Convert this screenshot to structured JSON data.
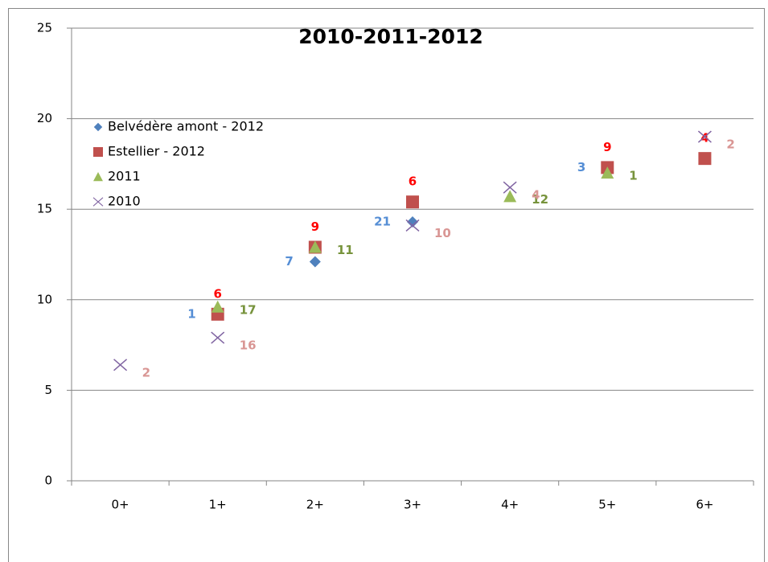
{
  "chart_data": {
    "type": "scatter",
    "title": "2010-2011-2012",
    "categories": [
      "0+",
      "1+",
      "2+",
      "3+",
      "4+",
      "5+",
      "6+"
    ],
    "ylim": [
      0,
      25
    ],
    "yticks": [
      0,
      5,
      10,
      15,
      20,
      25
    ],
    "grid": true,
    "legend": "upper left",
    "series": [
      {
        "name": "Belvédère amont - 2012",
        "color": "#4F81BD",
        "marker": "diamond",
        "label_color": "#558ED5",
        "values": [
          null,
          9.2,
          12.1,
          14.3,
          null,
          17.3,
          null
        ],
        "counts": [
          null,
          1,
          7,
          21,
          null,
          3,
          null
        ]
      },
      {
        "name": "Estellier - 2012",
        "color": "#C0504D",
        "marker": "square",
        "label_color": "#FF0000",
        "values": [
          null,
          9.2,
          12.9,
          15.4,
          null,
          17.3,
          17.8
        ],
        "counts": [
          null,
          6,
          9,
          6,
          null,
          9,
          4
        ]
      },
      {
        "name": "2011",
        "color": "#9BBB59",
        "marker": "triangle",
        "label_color": "#77933C",
        "values": [
          null,
          9.6,
          12.9,
          null,
          15.7,
          17.0,
          null
        ],
        "counts": [
          null,
          17,
          11,
          null,
          12,
          1,
          null
        ]
      },
      {
        "name": "2010",
        "color": "#8064A2",
        "marker": "x",
        "label_color": "#D99694",
        "values": [
          6.4,
          7.9,
          null,
          14.1,
          16.2,
          null,
          19.0
        ],
        "counts": [
          2,
          16,
          null,
          10,
          4,
          null,
          2
        ]
      }
    ]
  }
}
